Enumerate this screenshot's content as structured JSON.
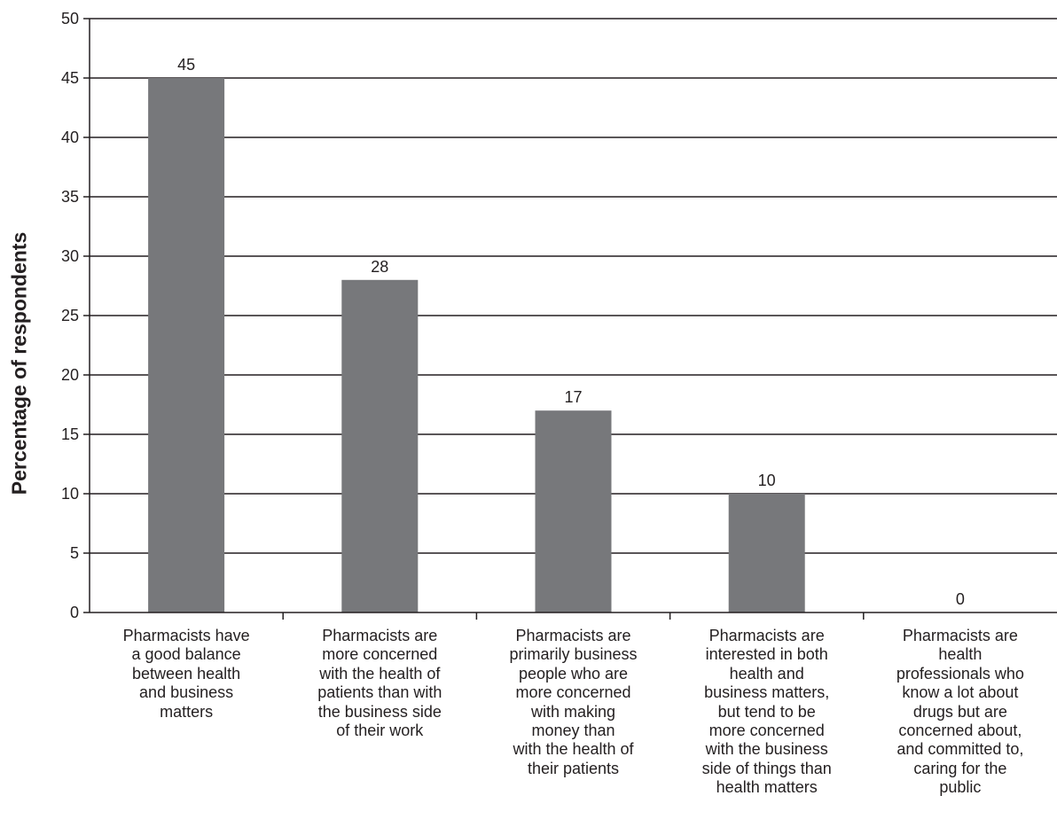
{
  "chart_data": {
    "type": "bar",
    "ylabel": "Percentage of respondents",
    "xlabel": "",
    "ylim": [
      0,
      50
    ],
    "yticks": [
      0,
      5,
      10,
      15,
      20,
      25,
      30,
      35,
      40,
      45,
      50
    ],
    "grid": true,
    "bar_color": "#77787b",
    "categories": [
      "Pharmacists have\na good balance\nbetween health\nand business\nmatters",
      "Pharmacists are\nmore concerned\nwith the health of\npatients than with\nthe business side\nof their work",
      "Pharmacists are\nprimarily business\npeople who are\nmore concerned\nwith making\nmoney than\nwith the health of\ntheir patients",
      "Pharmacists are\ninterested in both\nhealth and\nbusiness matters,\nbut tend to be\nmore concerned\nwith the business\nside of things than\nhealth matters",
      "Pharmacists are\nhealth\nprofessionals who\nknow a lot about\ndrugs but are\nconcerned about,\nand committed to,\ncaring for the\npublic"
    ],
    "values": [
      45,
      28,
      17,
      10,
      0
    ]
  }
}
